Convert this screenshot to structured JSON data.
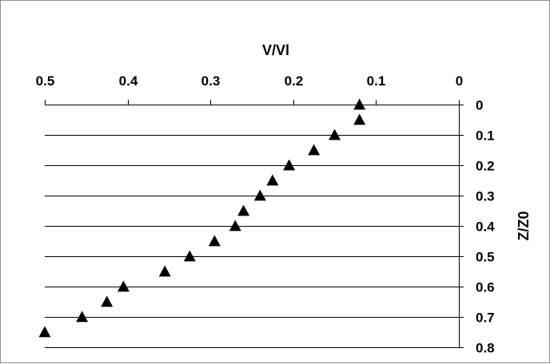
{
  "chart_data": {
    "type": "scatter",
    "xlabel": "V/Vl",
    "ylabel": "Z/Z0",
    "x_axis_position": "top",
    "y_axis_position": "right",
    "x_reversed": true,
    "y_reversed": true,
    "xlim": [
      0,
      0.5
    ],
    "ylim": [
      0,
      0.8
    ],
    "x_ticks": [
      "0.5",
      "0.4",
      "0.3",
      "0.2",
      "0.1",
      "0"
    ],
    "y_ticks": [
      "0",
      "0.1",
      "0.2",
      "0.3",
      "0.4",
      "0.5",
      "0.6",
      "0.7",
      "0.8"
    ],
    "gridlines": "horizontal",
    "marker": "triangle",
    "marker_color": "#000000",
    "gridline_color": "#000000",
    "legend": "none",
    "series": [
      {
        "x": [
          0.12,
          0.12,
          0.15,
          0.175,
          0.205,
          0.225,
          0.24,
          0.26,
          0.27,
          0.295,
          0.325,
          0.355,
          0.405,
          0.425,
          0.455,
          0.5
        ],
        "y": [
          0,
          0.05,
          0.1,
          0.15,
          0.2,
          0.25,
          0.3,
          0.35,
          0.4,
          0.45,
          0.5,
          0.55,
          0.6,
          0.65,
          0.7,
          0.75
        ]
      }
    ]
  }
}
